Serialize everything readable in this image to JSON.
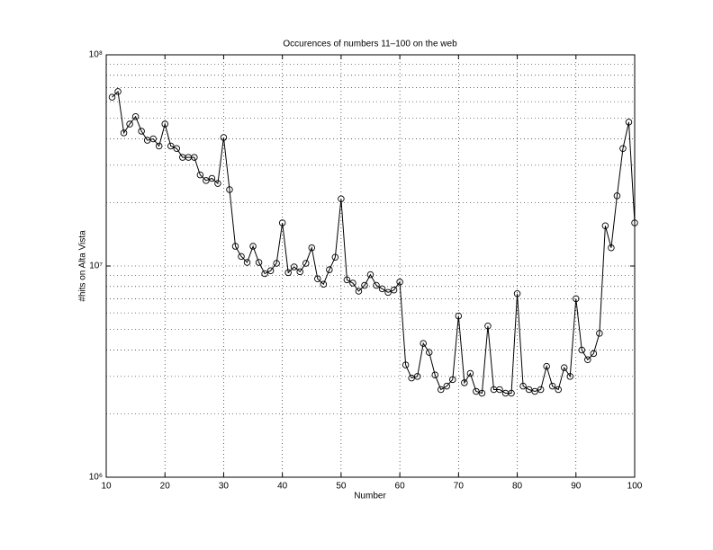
{
  "chart_data": {
    "type": "line",
    "title": "Occurences of numbers 11–100 on the web",
    "xlabel": "Number",
    "ylabel": "#hits on Alta Vista",
    "x": [
      11,
      12,
      13,
      14,
      15,
      16,
      17,
      18,
      19,
      20,
      21,
      22,
      23,
      24,
      25,
      26,
      27,
      28,
      29,
      30,
      31,
      32,
      33,
      34,
      35,
      36,
      37,
      38,
      39,
      40,
      41,
      42,
      43,
      44,
      45,
      46,
      47,
      48,
      49,
      50,
      51,
      52,
      53,
      54,
      55,
      56,
      57,
      58,
      59,
      60,
      61,
      62,
      63,
      64,
      65,
      66,
      67,
      68,
      69,
      70,
      71,
      72,
      73,
      74,
      75,
      76,
      77,
      78,
      79,
      80,
      81,
      82,
      83,
      84,
      85,
      86,
      87,
      88,
      89,
      90,
      91,
      92,
      93,
      94,
      95,
      96,
      97,
      98,
      99,
      100
    ],
    "values": [
      63000000,
      67000000,
      42700000,
      47000000,
      51000000,
      43500000,
      39400000,
      40000000,
      37000000,
      47000000,
      37000000,
      36000000,
      32700000,
      32700000,
      32700000,
      27000000,
      25400000,
      26000000,
      24600000,
      40600000,
      23000000,
      12400000,
      11100000,
      10400000,
      12400000,
      10400000,
      9200000,
      9500000,
      10300000,
      16000000,
      9300000,
      9900000,
      9400000,
      10300000,
      12200000,
      8700000,
      8200000,
      9600000,
      11000000,
      20800000,
      8600000,
      8300000,
      7600000,
      8100000,
      9100000,
      8100000,
      7800000,
      7500000,
      7700000,
      8400000,
      3400000,
      2950000,
      3000000,
      4300000,
      3900000,
      3050000,
      2600000,
      2700000,
      2900000,
      5800000,
      2800000,
      3100000,
      2550000,
      2500000,
      5200000,
      2600000,
      2600000,
      2500000,
      2500000,
      7400000,
      2700000,
      2600000,
      2550000,
      2600000,
      3350000,
      2700000,
      2600000,
      3300000,
      3000000,
      7000000,
      4000000,
      3600000,
      3850000,
      4800000,
      15500000,
      12200000,
      21500000,
      36000000,
      48000000,
      16000000
    ],
    "color": "#000000",
    "marker": "circle",
    "xlim": [
      10,
      100
    ],
    "xticks": [
      10,
      20,
      30,
      40,
      50,
      60,
      70,
      80,
      90,
      100
    ],
    "ylim": [
      1000000,
      100000000
    ],
    "ylog": true,
    "yticks": [
      {
        "value": 1000000,
        "label": "10⁶"
      },
      {
        "value": 10000000,
        "label": "10⁷"
      },
      {
        "value": 100000000,
        "label": "10⁸"
      }
    ],
    "grid": true
  }
}
